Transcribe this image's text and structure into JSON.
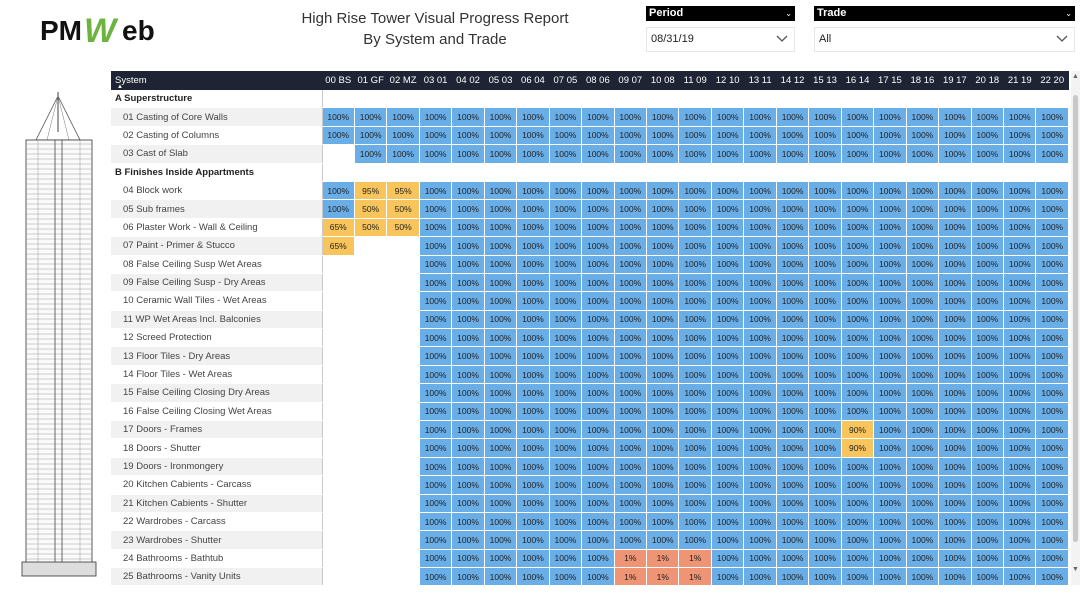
{
  "logo": {
    "text_left": "PM",
    "text_w": "W",
    "text_right": "eb"
  },
  "report": {
    "title_line1": "High Rise Tower Visual Progress Report",
    "title_line2": "By System and Trade"
  },
  "filters": {
    "period": {
      "label": "Period",
      "value": "08/31/19"
    },
    "trade": {
      "label": "Trade",
      "value": "All"
    }
  },
  "matrix": {
    "system_header": "System",
    "columns": [
      "00 BS",
      "01 GF",
      "02 MZ",
      "03 01",
      "04 02",
      "05 03",
      "06 04",
      "07 05",
      "08 06",
      "09 07",
      "10 08",
      "11 09",
      "12 10",
      "13 11",
      "14 12",
      "15 13",
      "16 14",
      "17 15",
      "18 16",
      "19 17",
      "20 18",
      "21 19",
      "22 20"
    ],
    "groups": [
      {
        "name": "A Superstructure",
        "rows": [
          {
            "label": "01 Casting of Core Walls",
            "values": [
              "100%",
              "100%",
              "100%",
              "100%",
              "100%",
              "100%",
              "100%",
              "100%",
              "100%",
              "100%",
              "100%",
              "100%",
              "100%",
              "100%",
              "100%",
              "100%",
              "100%",
              "100%",
              "100%",
              "100%",
              "100%",
              "100%",
              "100%"
            ]
          },
          {
            "label": "02 Casting of Columns",
            "values": [
              "100%",
              "100%",
              "100%",
              "100%",
              "100%",
              "100%",
              "100%",
              "100%",
              "100%",
              "100%",
              "100%",
              "100%",
              "100%",
              "100%",
              "100%",
              "100%",
              "100%",
              "100%",
              "100%",
              "100%",
              "100%",
              "100%",
              "100%"
            ]
          },
          {
            "label": "03 Cast of Slab",
            "values": [
              "",
              "100%",
              "100%",
              "100%",
              "100%",
              "100%",
              "100%",
              "100%",
              "100%",
              "100%",
              "100%",
              "100%",
              "100%",
              "100%",
              "100%",
              "100%",
              "100%",
              "100%",
              "100%",
              "100%",
              "100%",
              "100%",
              "100%"
            ]
          }
        ]
      },
      {
        "name": "B Finishes Inside Appartments",
        "rows": [
          {
            "label": "04 Block work",
            "values": [
              "100%",
              "95%",
              "95%",
              "100%",
              "100%",
              "100%",
              "100%",
              "100%",
              "100%",
              "100%",
              "100%",
              "100%",
              "100%",
              "100%",
              "100%",
              "100%",
              "100%",
              "100%",
              "100%",
              "100%",
              "100%",
              "100%",
              "100%"
            ]
          },
          {
            "label": "05 Sub frames",
            "values": [
              "100%",
              "50%",
              "50%",
              "100%",
              "100%",
              "100%",
              "100%",
              "100%",
              "100%",
              "100%",
              "100%",
              "100%",
              "100%",
              "100%",
              "100%",
              "100%",
              "100%",
              "100%",
              "100%",
              "100%",
              "100%",
              "100%",
              "100%"
            ]
          },
          {
            "label": "06 Plaster Work - Wall & Ceiling",
            "values": [
              "65%",
              "50%",
              "50%",
              "100%",
              "100%",
              "100%",
              "100%",
              "100%",
              "100%",
              "100%",
              "100%",
              "100%",
              "100%",
              "100%",
              "100%",
              "100%",
              "100%",
              "100%",
              "100%",
              "100%",
              "100%",
              "100%",
              "100%"
            ]
          },
          {
            "label": "07 Paint - Primer & Stucco",
            "values": [
              "65%",
              "",
              "",
              "100%",
              "100%",
              "100%",
              "100%",
              "100%",
              "100%",
              "100%",
              "100%",
              "100%",
              "100%",
              "100%",
              "100%",
              "100%",
              "100%",
              "100%",
              "100%",
              "100%",
              "100%",
              "100%",
              "100%"
            ]
          },
          {
            "label": "08 False Ceiling Susp Wet Areas",
            "values": [
              "",
              "",
              "",
              "100%",
              "100%",
              "100%",
              "100%",
              "100%",
              "100%",
              "100%",
              "100%",
              "100%",
              "100%",
              "100%",
              "100%",
              "100%",
              "100%",
              "100%",
              "100%",
              "100%",
              "100%",
              "100%",
              "100%"
            ]
          },
          {
            "label": "09 False Ceiling Susp - Dry Areas",
            "values": [
              "",
              "",
              "",
              "100%",
              "100%",
              "100%",
              "100%",
              "100%",
              "100%",
              "100%",
              "100%",
              "100%",
              "100%",
              "100%",
              "100%",
              "100%",
              "100%",
              "100%",
              "100%",
              "100%",
              "100%",
              "100%",
              "100%"
            ]
          },
          {
            "label": "10 Ceramic Wall Tiles - Wet Areas",
            "values": [
              "",
              "",
              "",
              "100%",
              "100%",
              "100%",
              "100%",
              "100%",
              "100%",
              "100%",
              "100%",
              "100%",
              "100%",
              "100%",
              "100%",
              "100%",
              "100%",
              "100%",
              "100%",
              "100%",
              "100%",
              "100%",
              "100%"
            ]
          },
          {
            "label": "11 WP Wet Areas Incl. Balconies",
            "values": [
              "",
              "",
              "",
              "100%",
              "100%",
              "100%",
              "100%",
              "100%",
              "100%",
              "100%",
              "100%",
              "100%",
              "100%",
              "100%",
              "100%",
              "100%",
              "100%",
              "100%",
              "100%",
              "100%",
              "100%",
              "100%",
              "100%"
            ]
          },
          {
            "label": "12 Screed Protection",
            "values": [
              "",
              "",
              "",
              "100%",
              "100%",
              "100%",
              "100%",
              "100%",
              "100%",
              "100%",
              "100%",
              "100%",
              "100%",
              "100%",
              "100%",
              "100%",
              "100%",
              "100%",
              "100%",
              "100%",
              "100%",
              "100%",
              "100%"
            ]
          },
          {
            "label": "13 Floor Tiles - Dry Areas",
            "values": [
              "",
              "",
              "",
              "100%",
              "100%",
              "100%",
              "100%",
              "100%",
              "100%",
              "100%",
              "100%",
              "100%",
              "100%",
              "100%",
              "100%",
              "100%",
              "100%",
              "100%",
              "100%",
              "100%",
              "100%",
              "100%",
              "100%"
            ]
          },
          {
            "label": "14 Floor Tiles - Wet Areas",
            "values": [
              "",
              "",
              "",
              "100%",
              "100%",
              "100%",
              "100%",
              "100%",
              "100%",
              "100%",
              "100%",
              "100%",
              "100%",
              "100%",
              "100%",
              "100%",
              "100%",
              "100%",
              "100%",
              "100%",
              "100%",
              "100%",
              "100%"
            ]
          },
          {
            "label": "15 False Ceiling Closing Dry Areas",
            "values": [
              "",
              "",
              "",
              "100%",
              "100%",
              "100%",
              "100%",
              "100%",
              "100%",
              "100%",
              "100%",
              "100%",
              "100%",
              "100%",
              "100%",
              "100%",
              "100%",
              "100%",
              "100%",
              "100%",
              "100%",
              "100%",
              "100%"
            ]
          },
          {
            "label": "16 False Ceiling Closing Wet Areas",
            "values": [
              "",
              "",
              "",
              "100%",
              "100%",
              "100%",
              "100%",
              "100%",
              "100%",
              "100%",
              "100%",
              "100%",
              "100%",
              "100%",
              "100%",
              "100%",
              "100%",
              "100%",
              "100%",
              "100%",
              "100%",
              "100%",
              "100%"
            ]
          },
          {
            "label": "17 Doors - Frames",
            "values": [
              "",
              "",
              "",
              "100%",
              "100%",
              "100%",
              "100%",
              "100%",
              "100%",
              "100%",
              "100%",
              "100%",
              "100%",
              "100%",
              "100%",
              "100%",
              "90%",
              "100%",
              "100%",
              "100%",
              "100%",
              "100%",
              "100%"
            ]
          },
          {
            "label": "18 Doors - Shutter",
            "values": [
              "",
              "",
              "",
              "100%",
              "100%",
              "100%",
              "100%",
              "100%",
              "100%",
              "100%",
              "100%",
              "100%",
              "100%",
              "100%",
              "100%",
              "100%",
              "90%",
              "100%",
              "100%",
              "100%",
              "100%",
              "100%",
              "100%"
            ]
          },
          {
            "label": "19 Doors - Ironmongery",
            "values": [
              "",
              "",
              "",
              "100%",
              "100%",
              "100%",
              "100%",
              "100%",
              "100%",
              "100%",
              "100%",
              "100%",
              "100%",
              "100%",
              "100%",
              "100%",
              "100%",
              "100%",
              "100%",
              "100%",
              "100%",
              "100%",
              "100%"
            ]
          },
          {
            "label": "20 Kitchen Cabients - Carcass",
            "values": [
              "",
              "",
              "",
              "100%",
              "100%",
              "100%",
              "100%",
              "100%",
              "100%",
              "100%",
              "100%",
              "100%",
              "100%",
              "100%",
              "100%",
              "100%",
              "100%",
              "100%",
              "100%",
              "100%",
              "100%",
              "100%",
              "100%"
            ]
          },
          {
            "label": "21 Kitchen Cabients - Shutter",
            "values": [
              "",
              "",
              "",
              "100%",
              "100%",
              "100%",
              "100%",
              "100%",
              "100%",
              "100%",
              "100%",
              "100%",
              "100%",
              "100%",
              "100%",
              "100%",
              "100%",
              "100%",
              "100%",
              "100%",
              "100%",
              "100%",
              "100%"
            ]
          },
          {
            "label": "22 Wardrobes - Carcass",
            "values": [
              "",
              "",
              "",
              "100%",
              "100%",
              "100%",
              "100%",
              "100%",
              "100%",
              "100%",
              "100%",
              "100%",
              "100%",
              "100%",
              "100%",
              "100%",
              "100%",
              "100%",
              "100%",
              "100%",
              "100%",
              "100%",
              "100%"
            ]
          },
          {
            "label": "23 Wardrobes - Shutter",
            "values": [
              "",
              "",
              "",
              "100%",
              "100%",
              "100%",
              "100%",
              "100%",
              "100%",
              "100%",
              "100%",
              "100%",
              "100%",
              "100%",
              "100%",
              "100%",
              "100%",
              "100%",
              "100%",
              "100%",
              "100%",
              "100%",
              "100%"
            ]
          },
          {
            "label": "24 Bathrooms - Bathtub",
            "values": [
              "",
              "",
              "",
              "100%",
              "100%",
              "100%",
              "100%",
              "100%",
              "100%",
              "1%",
              "1%",
              "1%",
              "100%",
              "100%",
              "100%",
              "100%",
              "100%",
              "100%",
              "100%",
              "100%",
              "100%",
              "100%",
              "100%"
            ]
          },
          {
            "label": "25 Bathrooms - Vanity Units",
            "values": [
              "",
              "",
              "",
              "100%",
              "100%",
              "100%",
              "100%",
              "100%",
              "100%",
              "1%",
              "1%",
              "1%",
              "100%",
              "100%",
              "100%",
              "100%",
              "100%",
              "100%",
              "100%",
              "100%",
              "100%",
              "100%",
              "100%"
            ]
          }
        ]
      }
    ]
  },
  "colors": {
    "complete": "#6aaee8",
    "partial": "#f7c55b",
    "low": "#f0a878",
    "minimal": "#ef9475",
    "header": "#1e2433",
    "logo_green": "#6cb33f"
  }
}
